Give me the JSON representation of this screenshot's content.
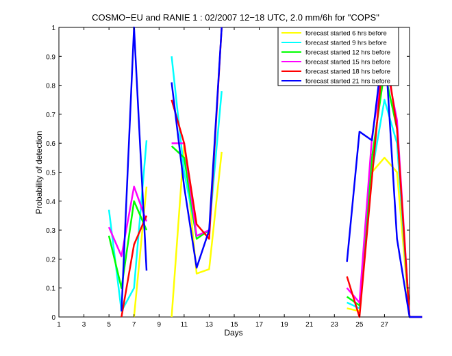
{
  "chart_data": {
    "type": "line",
    "title": "COSMO−EU and RANIE 1 : 02/2007 12−18 UTC, 2.0 mm/6h for \"COPS\"",
    "xlabel": "Days",
    "ylabel": "Probability of detection",
    "xlim": [
      1,
      29
    ],
    "ylim": [
      0,
      1
    ],
    "xticks": [
      1,
      3,
      5,
      7,
      9,
      11,
      13,
      15,
      17,
      19,
      21,
      23,
      25,
      27
    ],
    "yticks": [
      0,
      0.1,
      0.2,
      0.3,
      0.4,
      0.5,
      0.6,
      0.7,
      0.8,
      0.9,
      1
    ],
    "ytick_labels": [
      "0",
      "0.1",
      "0.2",
      "0.3",
      "0.4",
      "0.5",
      "0.6",
      "0.7",
      "0.8",
      "0.9",
      "1"
    ],
    "grid": false,
    "legend_position": "top-right",
    "x": [
      5,
      6,
      7,
      8,
      9,
      10,
      11,
      12,
      13,
      14,
      15,
      16,
      17,
      18,
      19,
      20,
      21,
      22,
      23,
      24,
      25,
      26,
      27,
      28,
      29,
      30
    ],
    "series": [
      {
        "name": "forecast started 6 hrs before",
        "color": "#ffff00",
        "values": [
          null,
          null,
          0.0,
          0.45,
          null,
          0.0,
          0.6,
          0.15,
          0.165,
          0.57,
          null,
          null,
          null,
          null,
          null,
          null,
          null,
          null,
          null,
          0.03,
          0.02,
          0.5,
          0.55,
          0.5,
          0.0,
          0.0
        ]
      },
      {
        "name": "forecast started 9 hrs before",
        "color": "#00ffff",
        "values": [
          0.37,
          0.02,
          0.1,
          0.61,
          null,
          0.9,
          0.5,
          0.28,
          0.3,
          0.78,
          null,
          null,
          null,
          null,
          null,
          null,
          null,
          null,
          null,
          0.05,
          0.03,
          0.5,
          0.75,
          0.6,
          0.0,
          0.0
        ]
      },
      {
        "name": "forecast started 12 hrs before",
        "color": "#00ff00",
        "values": [
          0.28,
          0.1,
          0.4,
          0.3,
          null,
          0.59,
          0.55,
          0.27,
          0.3,
          null,
          null,
          null,
          null,
          null,
          null,
          null,
          null,
          null,
          null,
          0.07,
          0.04,
          0.55,
          0.85,
          0.65,
          0.0,
          0.0
        ]
      },
      {
        "name": "forecast started 15 hrs before",
        "color": "#ff00ff",
        "values": [
          0.31,
          0.21,
          0.45,
          0.33,
          null,
          0.6,
          0.6,
          0.28,
          0.3,
          null,
          null,
          null,
          null,
          null,
          null,
          null,
          null,
          null,
          null,
          0.1,
          0.05,
          0.62,
          0.9,
          0.68,
          0.0,
          0.0
        ]
      },
      {
        "name": "forecast started 18 hrs before",
        "color": "#ff0000",
        "values": [
          null,
          0.0,
          0.25,
          0.35,
          null,
          0.75,
          0.6,
          0.32,
          0.27,
          1.0,
          null,
          null,
          null,
          null,
          null,
          null,
          null,
          null,
          null,
          0.14,
          0.0,
          0.48,
          0.95,
          0.65,
          0.0,
          0.0
        ]
      },
      {
        "name": "forecast started 21 hrs before",
        "color": "#0000ff",
        "values": [
          null,
          0.02,
          1.0,
          0.16,
          null,
          0.81,
          0.45,
          0.17,
          0.3,
          1.0,
          null,
          null,
          null,
          null,
          null,
          null,
          null,
          null,
          null,
          0.19,
          0.64,
          0.61,
          0.97,
          0.27,
          0.0,
          0.0
        ]
      }
    ]
  }
}
